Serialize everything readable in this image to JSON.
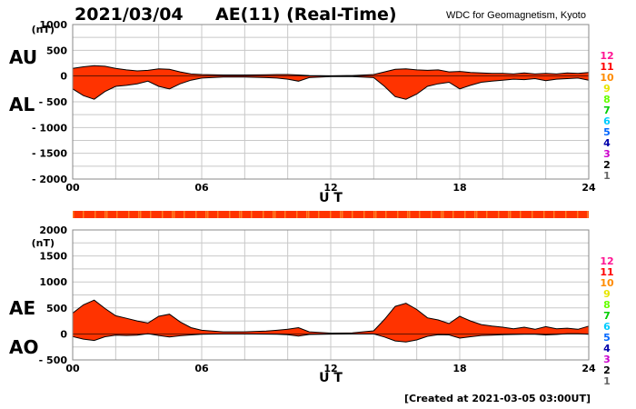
{
  "header": {
    "date": "2021/03/04",
    "title": "AE(11) (Real-Time)",
    "source": "WDC for Geomagnetism, Kyoto"
  },
  "footer": {
    "created": "[Created at 2021-03-05 03:00UT]"
  },
  "colors": {
    "fill": "#ff3300",
    "outline": "#000000",
    "grid": "#c8c8c8",
    "station_counts": [
      "#ff1493",
      "#ff0000",
      "#ff8c00",
      "#e6e600",
      "#66ff00",
      "#00cc00",
      "#00ccff",
      "#0066ff",
      "#0000aa",
      "#cc00cc",
      "#000000",
      "#666666",
      "#cccccc"
    ]
  },
  "station_counts": [
    "12",
    "11",
    "10",
    "9",
    "8",
    "7",
    "6",
    "5",
    "4",
    "3",
    "2",
    "1"
  ],
  "chart_data": [
    {
      "type": "area",
      "panel": "AU/AL",
      "left_labels": [
        "AU",
        "AL"
      ],
      "unit": "(nT)",
      "xlabel": "U T",
      "xlim": [
        0,
        24
      ],
      "xticks": [
        "00",
        "06",
        "12",
        "18",
        "24"
      ],
      "ylim": [
        -2000,
        1000
      ],
      "yticks": [
        "1000",
        "500",
        "0",
        "- 500",
        "- 1000",
        "- 1500",
        "- 2000"
      ],
      "grid": true,
      "series": [
        {
          "name": "AU",
          "x": [
            0,
            0.5,
            1,
            1.5,
            2,
            2.5,
            3,
            3.5,
            4,
            4.5,
            5,
            5.5,
            6,
            7,
            8,
            9,
            9.5,
            10,
            10.5,
            11,
            12,
            13,
            14,
            14.5,
            15,
            15.5,
            16,
            16.5,
            17,
            17.5,
            18,
            18.5,
            19,
            19.5,
            20,
            20.5,
            21,
            21.5,
            22,
            22.5,
            23,
            23.5,
            24
          ],
          "values": [
            150,
            180,
            200,
            190,
            150,
            120,
            100,
            110,
            140,
            130,
            80,
            40,
            30,
            20,
            20,
            25,
            30,
            30,
            20,
            10,
            5,
            10,
            30,
            80,
            130,
            140,
            120,
            110,
            120,
            80,
            90,
            70,
            60,
            50,
            50,
            40,
            60,
            40,
            50,
            40,
            60,
            50,
            70
          ]
        },
        {
          "name": "AL",
          "x": [
            0,
            0.5,
            1,
            1.5,
            2,
            2.5,
            3,
            3.5,
            4,
            4.5,
            5,
            5.5,
            6,
            7,
            8,
            9,
            9.5,
            10,
            10.5,
            11,
            12,
            13,
            14,
            14.5,
            15,
            15.5,
            16,
            16.5,
            17,
            17.5,
            18,
            18.5,
            19,
            19.5,
            20,
            20.5,
            21,
            21.5,
            22,
            22.5,
            23,
            23.5,
            24
          ],
          "values": [
            -250,
            -380,
            -450,
            -300,
            -200,
            -180,
            -150,
            -100,
            -200,
            -250,
            -150,
            -80,
            -40,
            -20,
            -20,
            -30,
            -40,
            -60,
            -100,
            -30,
            -10,
            -10,
            -30,
            -200,
            -400,
            -450,
            -350,
            -200,
            -150,
            -120,
            -250,
            -180,
            -120,
            -100,
            -80,
            -60,
            -70,
            -50,
            -90,
            -60,
            -50,
            -40,
            -80
          ]
        }
      ]
    },
    {
      "type": "area",
      "panel": "AE/AO",
      "left_labels": [
        "AE",
        "AO"
      ],
      "unit": "(nT)",
      "xlabel": "U T",
      "xlim": [
        0,
        24
      ],
      "xticks": [
        "00",
        "06",
        "12",
        "18",
        "24"
      ],
      "ylim": [
        -500,
        2000
      ],
      "yticks": [
        "2000",
        "1500",
        "1000",
        "500",
        "0",
        "- 500"
      ],
      "grid": true,
      "series": [
        {
          "name": "AE",
          "x": [
            0,
            0.5,
            1,
            1.5,
            2,
            2.5,
            3,
            3.5,
            4,
            4.5,
            5,
            5.5,
            6,
            7,
            8,
            9,
            9.5,
            10,
            10.5,
            11,
            12,
            13,
            14,
            14.5,
            15,
            15.5,
            16,
            16.5,
            17,
            17.5,
            18,
            18.5,
            19,
            19.5,
            20,
            20.5,
            21,
            21.5,
            22,
            22.5,
            23,
            23.5,
            24
          ],
          "values": [
            400,
            560,
            650,
            490,
            350,
            300,
            250,
            210,
            340,
            380,
            230,
            120,
            70,
            40,
            40,
            55,
            70,
            90,
            120,
            40,
            15,
            20,
            60,
            280,
            530,
            590,
            470,
            310,
            270,
            200,
            340,
            250,
            180,
            150,
            130,
            100,
            130,
            90,
            140,
            100,
            110,
            90,
            150
          ]
        },
        {
          "name": "AO",
          "x": [
            0,
            0.5,
            1,
            1.5,
            2,
            2.5,
            3,
            3.5,
            4,
            4.5,
            5,
            5.5,
            6,
            7,
            8,
            9,
            9.5,
            10,
            10.5,
            11,
            12,
            13,
            14,
            14.5,
            15,
            15.5,
            16,
            16.5,
            17,
            17.5,
            18,
            18.5,
            19,
            19.5,
            20,
            20.5,
            21,
            21.5,
            22,
            22.5,
            23,
            23.5,
            24
          ],
          "values": [
            -50,
            -100,
            -125,
            -55,
            -25,
            -30,
            -25,
            5,
            -30,
            -60,
            -35,
            -20,
            -5,
            0,
            0,
            -3,
            -5,
            -15,
            -40,
            -10,
            -3,
            0,
            0,
            -60,
            -135,
            -155,
            -115,
            -45,
            -15,
            -20,
            -80,
            -55,
            -30,
            -25,
            -15,
            -10,
            -5,
            -5,
            -20,
            -10,
            5,
            5,
            -5
          ]
        }
      ]
    }
  ]
}
